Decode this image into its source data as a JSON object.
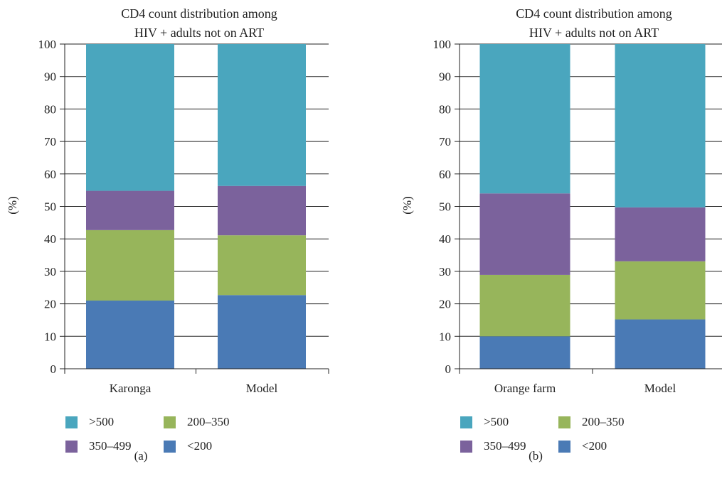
{
  "chart_data": [
    {
      "type": "bar",
      "stacked": true,
      "title": "CD4 count distribution among HIV + adults not on ART",
      "title_lines": [
        "CD4 count distribution among",
        "HIV + adults not on ART"
      ],
      "ylabel": "(%)",
      "ylim": [
        0,
        100
      ],
      "yticks": [
        0,
        10,
        20,
        30,
        40,
        50,
        60,
        70,
        80,
        90,
        100
      ],
      "grid": true,
      "categories": [
        "Karonga",
        "Model"
      ],
      "series": [
        {
          "name": "<200",
          "color": "#4a7ab5",
          "values": [
            21,
            22.7
          ]
        },
        {
          "name": "200–350",
          "color": "#97b55b",
          "values": [
            21.7,
            18.4
          ]
        },
        {
          "name": "350–499",
          "color": "#7b629c",
          "values": [
            12.1,
            15.2
          ]
        },
        {
          "name": ">500",
          "color": "#4aa6be",
          "values": [
            45.2,
            43.7
          ]
        }
      ],
      "legend_position": "bottom",
      "caption": "(a)"
    },
    {
      "type": "bar",
      "stacked": true,
      "title": "CD4 count distribution among HIV + adults not on ART",
      "title_lines": [
        "CD4 count distribution among",
        "HIV + adults not on ART"
      ],
      "ylabel": "(%)",
      "ylim": [
        0,
        100
      ],
      "yticks": [
        0,
        10,
        20,
        30,
        40,
        50,
        60,
        70,
        80,
        90,
        100
      ],
      "grid": true,
      "categories": [
        "Orange farm",
        "Model"
      ],
      "series": [
        {
          "name": "<200",
          "color": "#4a7ab5",
          "values": [
            10,
            15.2
          ]
        },
        {
          "name": "200–350",
          "color": "#97b55b",
          "values": [
            18.9,
            17.9
          ]
        },
        {
          "name": "350–499",
          "color": "#7b629c",
          "values": [
            25.1,
            16.6
          ]
        },
        {
          "name": ">500",
          "color": "#4aa6be",
          "values": [
            46,
            50.3
          ]
        }
      ],
      "legend_position": "bottom",
      "caption": "(b)"
    }
  ],
  "legend_order": [
    ">500",
    "200–350",
    "350–499",
    "<200"
  ]
}
